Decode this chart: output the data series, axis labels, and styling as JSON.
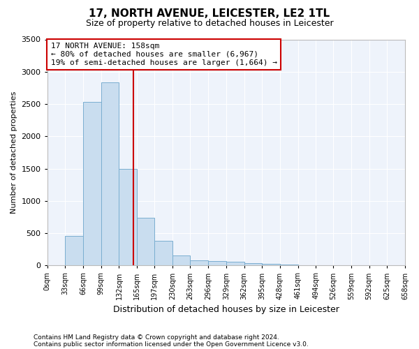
{
  "title": "17, NORTH AVENUE, LEICESTER, LE2 1TL",
  "subtitle": "Size of property relative to detached houses in Leicester",
  "xlabel": "Distribution of detached houses by size in Leicester",
  "ylabel": "Number of detached properties",
  "bar_color": "#c9ddef",
  "bar_edge_color": "#7aaed0",
  "background_color": "#eef3fb",
  "grid_color": "#ffffff",
  "annotation_line_color": "#cc0000",
  "annotation_box_line_color": "#cc0000",
  "annotation_title": "17 NORTH AVENUE: 158sqm",
  "annotation_line1": "← 80% of detached houses are smaller (6,967)",
  "annotation_line2": "19% of semi-detached houses are larger (1,664) →",
  "property_size": 158,
  "ylim": [
    0,
    3500
  ],
  "yticks": [
    0,
    500,
    1000,
    1500,
    2000,
    2500,
    3000,
    3500
  ],
  "bin_edges": [
    0,
    33,
    66,
    99,
    132,
    165,
    197,
    230,
    263,
    296,
    329,
    362,
    395,
    428,
    461,
    494,
    526,
    559,
    592,
    625,
    658
  ],
  "bar_heights": [
    5,
    460,
    2530,
    2840,
    1490,
    740,
    380,
    150,
    80,
    70,
    60,
    40,
    20,
    10,
    5,
    3,
    2,
    1,
    1,
    1
  ],
  "footnote1": "Contains HM Land Registry data © Crown copyright and database right 2024.",
  "footnote2": "Contains public sector information licensed under the Open Government Licence v3.0."
}
